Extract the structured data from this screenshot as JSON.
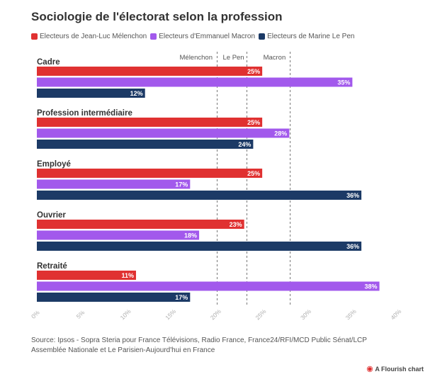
{
  "chart_data": {
    "type": "bar",
    "orientation": "horizontal",
    "title": "Sociologie de l'électorat selon la profession",
    "categories": [
      "Cadre",
      "Profession intermédiaire",
      "Employé",
      "Ouvrier",
      "Retraité"
    ],
    "series": [
      {
        "name": "Electeurs de Jean-Luc Mélenchon",
        "color": "#e03131",
        "values": [
          25,
          25,
          25,
          23,
          11
        ],
        "labels": [
          "25%",
          "25%",
          "25%",
          "23%",
          "11%"
        ]
      },
      {
        "name": "Electeurs d'Emmanuel Macron",
        "color": "#a259ec",
        "values": [
          35,
          28,
          17,
          18,
          38
        ],
        "labels": [
          "35%",
          "28%",
          "17%",
          "18%",
          "38%"
        ]
      },
      {
        "name": "Electeurs de Marine Le Pen",
        "color": "#1c3a66",
        "values": [
          12,
          24,
          36,
          36,
          17
        ],
        "labels": [
          "12%",
          "24%",
          "36%",
          "36%",
          "17%"
        ]
      }
    ],
    "xlim": [
      0,
      40
    ],
    "xticks": [
      0,
      5,
      10,
      15,
      20,
      25,
      30,
      35,
      40
    ],
    "xtick_labels": [
      "0%",
      "5%",
      "10%",
      "15%",
      "20%",
      "25%",
      "30%",
      "35%",
      "40%"
    ],
    "reference_lines": [
      {
        "label": "Mélenchon",
        "value": 20
      },
      {
        "label": "Le Pen",
        "value": 23.3
      },
      {
        "label": "Macron",
        "value": 28.1
      }
    ],
    "legend_position": "top",
    "grid": false
  },
  "source": "Source: Ipsos - Sopra Steria pour France Télévisions, Radio France, France24/RFI/MCD Public Sénat/LCP Assemblée Nationale et Le Parisien-Aujourd'hui en France",
  "credit": "A Flourish chart"
}
